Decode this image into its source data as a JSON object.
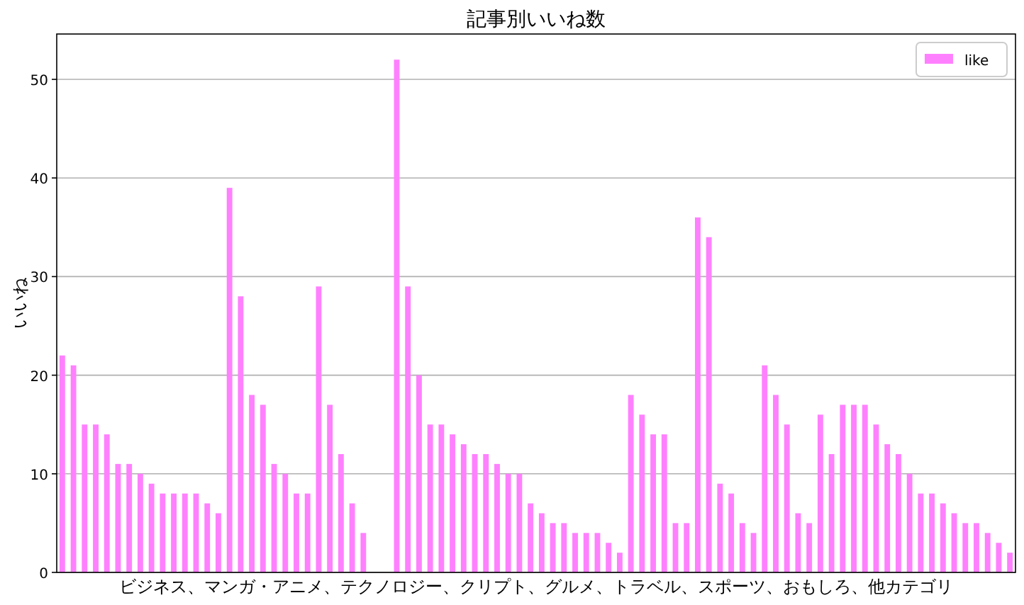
{
  "chart_data": {
    "type": "bar",
    "title": "記事別いいね数",
    "xlabel": "ビジネス、マンガ・アニメ、テクノロジー、クリプト、グルメ、トラベル、スポーツ、おもしろ、他カテゴリ",
    "ylabel": "いいね",
    "categories": [
      null,
      null,
      null,
      null,
      null,
      null,
      null,
      null,
      null,
      null,
      null,
      null,
      null,
      null,
      null,
      null,
      null,
      null,
      null,
      null,
      null,
      null,
      null,
      null,
      null,
      null,
      null,
      null,
      null,
      null,
      null,
      null,
      null,
      null,
      null,
      null,
      null,
      null,
      null,
      null,
      null,
      null,
      null,
      null,
      null,
      null,
      null,
      null,
      null,
      null,
      null,
      null,
      null,
      null,
      null,
      null,
      null,
      null,
      null,
      null,
      null,
      null,
      null,
      null,
      null,
      null,
      null,
      null,
      null,
      null,
      null,
      null,
      null,
      null,
      null,
      null,
      null,
      null,
      null,
      null,
      null,
      null,
      null,
      null,
      null,
      null
    ],
    "series": [
      {
        "name": "like",
        "color": "#ff80ff",
        "values": [
          22,
          21,
          15,
          15,
          14,
          11,
          11,
          10,
          9,
          8,
          8,
          8,
          8,
          7,
          6,
          39,
          28,
          18,
          17,
          11,
          10,
          8,
          8,
          29,
          17,
          12,
          7,
          4,
          0,
          0,
          52,
          29,
          20,
          15,
          15,
          14,
          13,
          12,
          12,
          11,
          10,
          10,
          7,
          6,
          5,
          5,
          4,
          4,
          4,
          3,
          2,
          18,
          16,
          14,
          14,
          5,
          5,
          36,
          34,
          9,
          8,
          5,
          4,
          21,
          18,
          15,
          6,
          5,
          16,
          12,
          17,
          17,
          17,
          15,
          13,
          12,
          10,
          8,
          8,
          7,
          6,
          5,
          5,
          4,
          3,
          2
        ]
      }
    ],
    "ylim": [
      0,
      54.6
    ],
    "yticks": [
      0,
      10,
      20,
      30,
      40,
      50
    ],
    "grid": "y",
    "legend": "top right"
  }
}
